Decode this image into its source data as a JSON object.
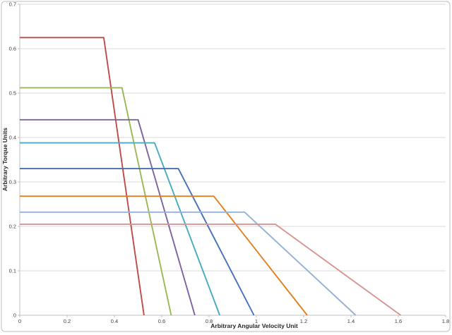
{
  "chart_data": {
    "type": "line",
    "title": "",
    "xlabel": "Arbitrary Angular Velocity Unit",
    "ylabel": "Arbitrary Torque Units",
    "xlim": [
      0,
      1.8
    ],
    "ylim": [
      0,
      0.7
    ],
    "x_ticks": [
      0,
      0.2,
      0.4,
      0.6,
      0.8,
      1,
      1.2,
      1.4,
      1.6,
      1.8
    ],
    "x_tick_labels": [
      "0",
      "0.2",
      "0.4",
      "0.6",
      "0.8",
      "1",
      "1.2",
      "1.4",
      "1.6",
      "1.8"
    ],
    "y_ticks": [
      0,
      0.1,
      0.2,
      0.3,
      0.4,
      0.5,
      0.6,
      0.7
    ],
    "y_tick_labels": [
      "0",
      "0.1",
      "0.2",
      "0.3",
      "0.4",
      "0.5",
      "0.6",
      "0.7"
    ],
    "grid": "horizontal-only",
    "legend": "none",
    "frame_color": "#c9c9c9",
    "gridline_color": "#d9d9d9",
    "axis_color": "#bfbfbf",
    "series": [
      {
        "name": "series-1-red",
        "color": "#be4b48",
        "points": [
          [
            0,
            0.625
          ],
          [
            0.355,
            0.625
          ],
          [
            0.525,
            0
          ]
        ]
      },
      {
        "name": "series-2-green",
        "color": "#98b954",
        "points": [
          [
            0,
            0.512
          ],
          [
            0.432,
            0.512
          ],
          [
            0.64,
            0
          ]
        ]
      },
      {
        "name": "series-3-purple",
        "color": "#7e62a1",
        "points": [
          [
            0,
            0.44
          ],
          [
            0.5,
            0.44
          ],
          [
            0.74,
            0
          ]
        ]
      },
      {
        "name": "series-4-teal",
        "color": "#46aac5",
        "points": [
          [
            0,
            0.388
          ],
          [
            0.57,
            0.388
          ],
          [
            0.845,
            0
          ]
        ]
      },
      {
        "name": "series-5-blue",
        "color": "#4472b8",
        "points": [
          [
            0,
            0.33
          ],
          [
            0.67,
            0.33
          ],
          [
            0.99,
            0
          ]
        ]
      },
      {
        "name": "series-6-orange",
        "color": "#e0801f",
        "points": [
          [
            0,
            0.268
          ],
          [
            0.82,
            0.268
          ],
          [
            1.215,
            0
          ]
        ]
      },
      {
        "name": "series-7-lightblue",
        "color": "#94b2d7",
        "points": [
          [
            0,
            0.232
          ],
          [
            0.95,
            0.232
          ],
          [
            1.42,
            0
          ]
        ]
      },
      {
        "name": "series-8-pink",
        "color": "#d79492",
        "points": [
          [
            0,
            0.205
          ],
          [
            1.08,
            0.205
          ],
          [
            1.61,
            0
          ]
        ]
      }
    ]
  }
}
